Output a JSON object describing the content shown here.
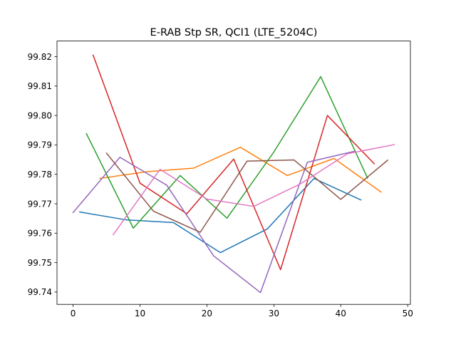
{
  "chart_data": {
    "type": "line",
    "title": "E-RAB Stp SR, QCI1 (LTE_5204C)",
    "xlabel": "",
    "ylabel": "",
    "xlim": [
      -2.4,
      50.4
    ],
    "ylim": [
      99.7358,
      99.8253
    ],
    "xticks": [
      0,
      10,
      20,
      30,
      40,
      50
    ],
    "yticks": [
      99.74,
      99.75,
      99.76,
      99.77,
      99.78,
      99.79,
      99.8,
      99.81,
      99.82
    ],
    "ytick_labels": [
      "99.74",
      "99.75",
      "99.76",
      "99.77",
      "99.78",
      "99.79",
      "99.80",
      "99.81",
      "99.82"
    ],
    "grid": false,
    "series": [
      {
        "color": "#1f77b4",
        "x": [
          1,
          8,
          15,
          22,
          29,
          36,
          43
        ],
        "y": [
          99.7672,
          99.7645,
          99.7636,
          99.7534,
          99.7614,
          99.7786,
          99.7713
        ]
      },
      {
        "color": "#ff7f0e",
        "x": [
          4,
          11,
          18,
          25,
          32,
          39,
          46
        ],
        "y": [
          99.7786,
          99.7809,
          99.7821,
          99.7892,
          99.7796,
          99.7854,
          99.774
        ]
      },
      {
        "color": "#2ca02c",
        "x": [
          2,
          9,
          16,
          23,
          30,
          37,
          44
        ],
        "y": [
          99.7938,
          99.7617,
          99.7796,
          99.7651,
          99.7876,
          99.8132,
          99.7787
        ]
      },
      {
        "color": "#d62728",
        "x": [
          3,
          10,
          17,
          24,
          31,
          38,
          45
        ],
        "y": [
          99.8205,
          99.777,
          99.7666,
          99.7852,
          99.7476,
          99.8,
          99.7836
        ]
      },
      {
        "color": "#9467bd",
        "x": [
          0,
          7,
          14,
          21,
          28,
          35,
          42
        ],
        "y": [
          99.767,
          99.7858,
          99.7763,
          99.7523,
          99.7398,
          99.7841,
          99.7878
        ]
      },
      {
        "color": "#8c564b",
        "x": [
          5,
          12,
          19,
          26,
          33,
          40,
          47
        ],
        "y": [
          99.7872,
          99.7675,
          99.7603,
          99.7845,
          99.7849,
          99.7715,
          99.7848
        ]
      },
      {
        "color": "#e377c2",
        "x": [
          6,
          13,
          20,
          27,
          34,
          41,
          48
        ],
        "y": [
          99.7595,
          99.7817,
          99.7716,
          99.7691,
          99.7768,
          99.787,
          99.7901
        ]
      }
    ]
  }
}
